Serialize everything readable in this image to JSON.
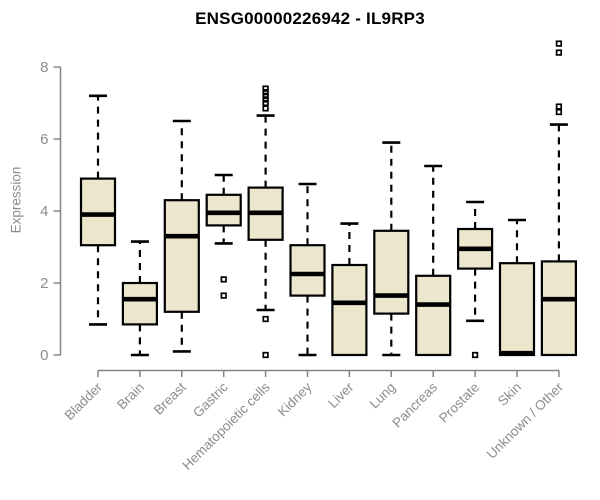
{
  "window": {
    "background": "#ffffff"
  },
  "colors": {
    "box_fill": "#ECE7CC",
    "box_line": "#000000",
    "median_line": "#000000",
    "whisker_line": "#000000",
    "outlier_line": "#000000",
    "axis_line": "#858585",
    "tick_label": "#8c8c8c",
    "title": "#000000"
  },
  "chart_data": {
    "type": "boxplot",
    "title": "ENSG00000226942 - IL9RP3",
    "ylabel": "Expression",
    "xlabel": "",
    "yticks": [
      0,
      2,
      4,
      6,
      8
    ],
    "ylim": [
      -0.4,
      8.75
    ],
    "grid": false,
    "x_label_rotation_deg": 45,
    "categories": [
      "Bladder",
      "Brain",
      "Breast",
      "Gastric",
      "Hematopoietic cells",
      "Kidney",
      "Liver",
      "Lung",
      "Pancreas",
      "Prostate",
      "Skin",
      "Unknown / Other"
    ],
    "boxes": [
      {
        "label": "Bladder",
        "whisker_low": 0.85,
        "q1": 3.05,
        "median": 3.9,
        "q3": 4.9,
        "whisker_high": 7.2,
        "outliers": []
      },
      {
        "label": "Brain",
        "whisker_low": 0.0,
        "q1": 0.85,
        "median": 1.55,
        "q3": 2.0,
        "whisker_high": 3.15,
        "outliers": []
      },
      {
        "label": "Breast",
        "whisker_low": 0.1,
        "q1": 1.2,
        "median": 3.3,
        "q3": 4.3,
        "whisker_high": 6.5,
        "outliers": []
      },
      {
        "label": "Gastric",
        "whisker_low": 3.1,
        "q1": 3.6,
        "median": 3.95,
        "q3": 4.45,
        "whisker_high": 5.0,
        "outliers": [
          2.1,
          1.65
        ]
      },
      {
        "label": "Hematopoietic cells",
        "whisker_low": 1.25,
        "q1": 3.2,
        "median": 3.95,
        "q3": 4.65,
        "whisker_high": 6.65,
        "outliers": [
          7.4,
          7.3,
          7.2,
          7.1,
          7.0,
          6.85,
          1.0,
          0.0
        ]
      },
      {
        "label": "Kidney",
        "whisker_low": 0.0,
        "q1": 1.65,
        "median": 2.25,
        "q3": 3.05,
        "whisker_high": 4.75,
        "outliers": []
      },
      {
        "label": "Liver",
        "whisker_low": 0.0,
        "q1": 0.0,
        "median": 1.45,
        "q3": 2.5,
        "whisker_high": 3.65,
        "outliers": []
      },
      {
        "label": "Lung",
        "whisker_low": 0.0,
        "q1": 1.15,
        "median": 1.65,
        "q3": 3.45,
        "whisker_high": 5.9,
        "outliers": []
      },
      {
        "label": "Pancreas",
        "whisker_low": 0.0,
        "q1": 0.0,
        "median": 1.4,
        "q3": 2.2,
        "whisker_high": 5.25,
        "outliers": []
      },
      {
        "label": "Prostate",
        "whisker_low": 0.95,
        "q1": 2.4,
        "median": 2.95,
        "q3": 3.5,
        "whisker_high": 4.25,
        "outliers": [
          0.0
        ]
      },
      {
        "label": "Skin",
        "whisker_low": 0.0,
        "q1": 0.0,
        "median": 0.05,
        "q3": 2.55,
        "whisker_high": 3.75,
        "outliers": []
      },
      {
        "label": "Unknown / Other",
        "whisker_low": 0.0,
        "q1": 0.0,
        "median": 1.55,
        "q3": 2.6,
        "whisker_high": 6.4,
        "outliers": [
          8.65,
          8.4,
          6.9,
          6.75
        ]
      }
    ]
  }
}
